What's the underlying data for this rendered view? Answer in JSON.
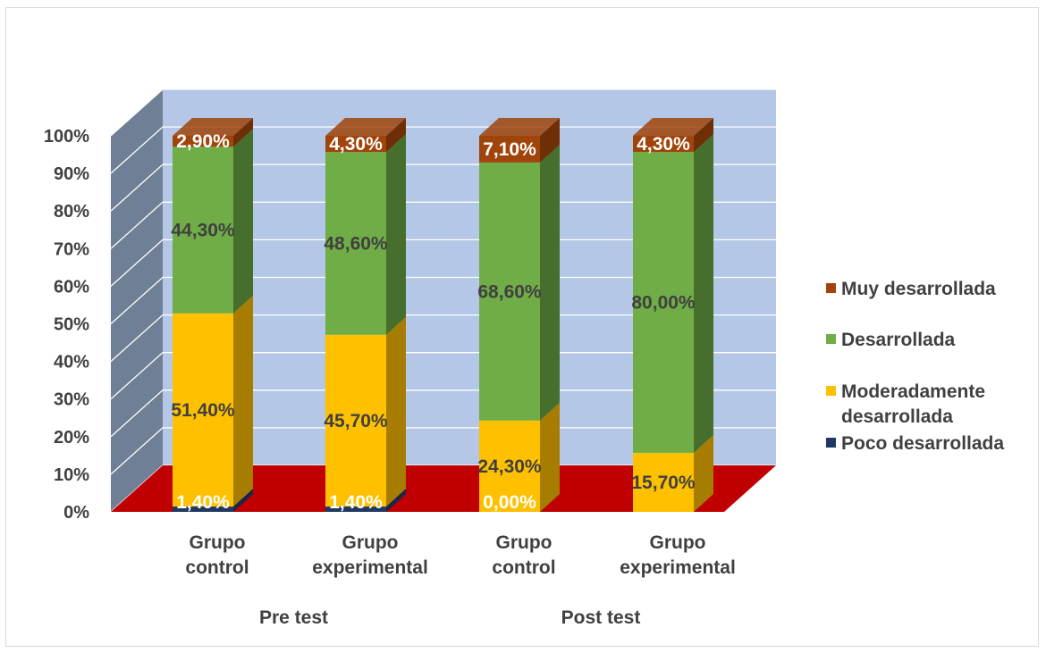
{
  "chart_data": {
    "type": "bar",
    "stacked": true,
    "three_d": true,
    "percent": true,
    "categories": [
      "Grupo control",
      "Grupo experimental",
      "Grupo control",
      "Grupo experimental"
    ],
    "category_lines": [
      [
        "Grupo",
        "control"
      ],
      [
        "Grupo",
        "experimental"
      ],
      [
        "Grupo",
        "control"
      ],
      [
        "Grupo",
        "experimental"
      ]
    ],
    "groups": [
      {
        "label": "Pre test",
        "categories": [
          0,
          1
        ]
      },
      {
        "label": "Post test",
        "categories": [
          2,
          3
        ]
      }
    ],
    "series": [
      {
        "name": "Poco desarrollada",
        "color": "#1f3864",
        "side_color": "#16284a",
        "values": [
          1.4,
          1.4,
          0.0,
          0.0
        ],
        "labels": [
          "1,40%",
          "1,40%",
          "0,00%",
          ""
        ],
        "label_color": "#ffffff"
      },
      {
        "name": "Moderadamente desarrollada",
        "color": "#ffc000",
        "side_color": "#a67d00",
        "values": [
          51.4,
          45.7,
          24.3,
          15.7
        ],
        "labels": [
          "51,40%",
          "45,70%",
          "24,30%",
          "15,70%"
        ],
        "label_color": "#404040"
      },
      {
        "name": "Desarrollada",
        "color": "#70ad47",
        "side_color": "#466e2c",
        "values": [
          44.3,
          48.6,
          68.6,
          80.0
        ],
        "labels": [
          "44,30%",
          "48,60%",
          "68,60%",
          "80,00%"
        ],
        "label_color": "#404040"
      },
      {
        "name": "Muy desarrollada",
        "color": "#a0440a",
        "side_color": "#6e2e06",
        "values": [
          2.9,
          4.3,
          7.1,
          4.3
        ],
        "labels": [
          "2,90%",
          "4,30%",
          "7,10%",
          "4,30%"
        ],
        "label_color": "#ffffff"
      }
    ],
    "legend_order": [
      3,
      2,
      1,
      0
    ],
    "legend_lines": [
      [
        "Muy desarrollada"
      ],
      [
        "Desarrollada"
      ],
      [
        "Moderadamente",
        "desarrollada"
      ],
      [
        "Poco desarrollada"
      ]
    ],
    "y_ticks": [
      "0%",
      "10%",
      "20%",
      "30%",
      "40%",
      "50%",
      "60%",
      "70%",
      "80%",
      "90%",
      "100%"
    ],
    "ylim": [
      0,
      100
    ],
    "grid": true,
    "legend_position": "right",
    "colors": {
      "back_wall": "#b4c7e7",
      "side_wall": "#6f7f96",
      "floor": "#c00000",
      "gridline": "#ffffff",
      "text": "#404040"
    }
  }
}
